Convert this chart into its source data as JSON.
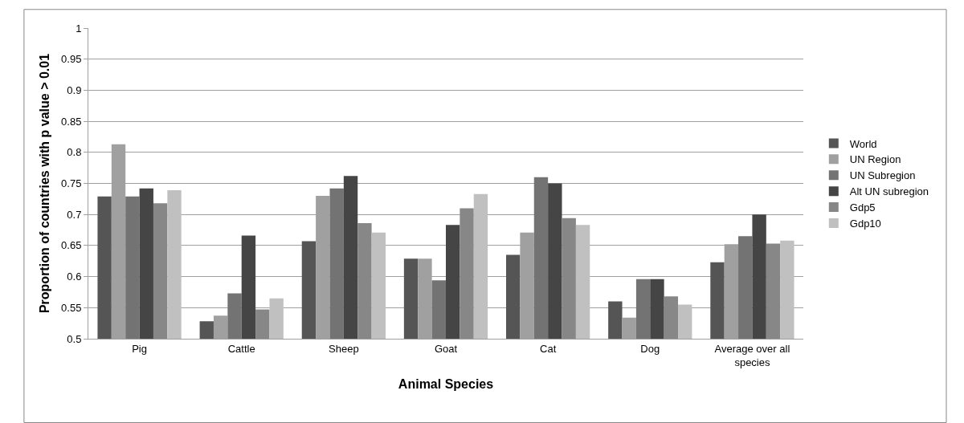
{
  "chart_data": {
    "type": "bar",
    "xlabel": "Animal Species",
    "ylabel": "Proportion of countries with p value > 0.01",
    "categories": [
      "Pig",
      "Cattle",
      "Sheep",
      "Goat",
      "Cat",
      "Dog",
      "Average over all species"
    ],
    "series": [
      {
        "name": "World",
        "color": "#555555",
        "values": [
          0.729,
          0.528,
          0.657,
          0.629,
          0.635,
          0.56,
          0.623
        ]
      },
      {
        "name": "UN Region",
        "color": "#a0a0a0",
        "values": [
          0.813,
          0.537,
          0.73,
          0.629,
          0.671,
          0.534,
          0.652
        ]
      },
      {
        "name": "UN Subregion",
        "color": "#737373",
        "values": [
          0.729,
          0.573,
          0.742,
          0.594,
          0.76,
          0.596,
          0.665
        ]
      },
      {
        "name": "Alt UN subregion",
        "color": "#454545",
        "values": [
          0.742,
          0.666,
          0.762,
          0.683,
          0.75,
          0.596,
          0.7
        ]
      },
      {
        "name": "Gdp5",
        "color": "#878787",
        "values": [
          0.718,
          0.547,
          0.686,
          0.71,
          0.694,
          0.568,
          0.653
        ]
      },
      {
        "name": "Gdp10",
        "color": "#c0c0c0",
        "values": [
          0.739,
          0.565,
          0.671,
          0.733,
          0.683,
          0.555,
          0.658
        ]
      }
    ],
    "ylim": [
      0.5,
      1
    ],
    "yticks": [
      0.5,
      0.55,
      0.6,
      0.65,
      0.7,
      0.75,
      0.8,
      0.85,
      0.9,
      0.95,
      1
    ],
    "grid": "y",
    "legend": "right"
  }
}
